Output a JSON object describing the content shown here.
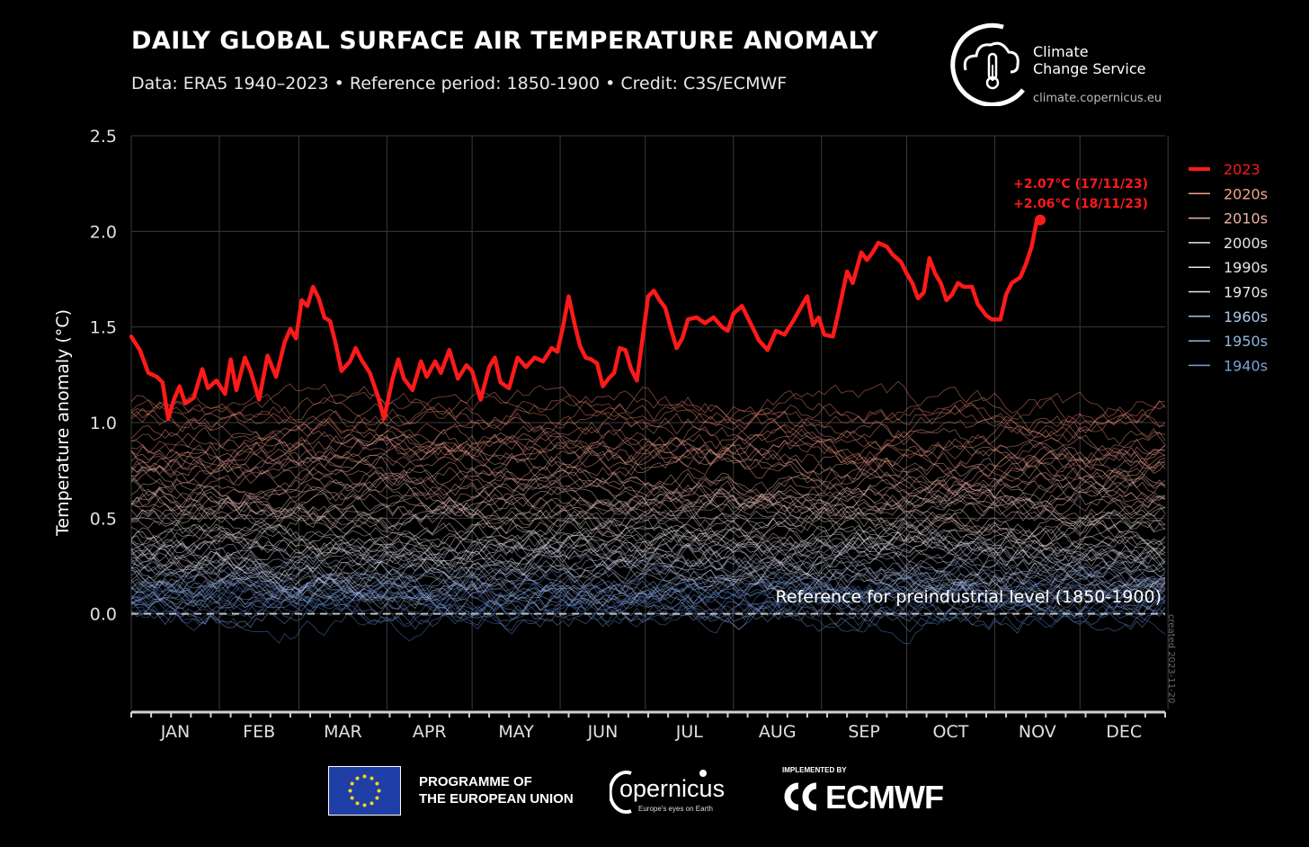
{
  "header": {
    "title": "DAILY GLOBAL SURFACE AIR TEMPERATURE ANOMALY",
    "subtitle": "Data: ERA5 1940–2023 • Reference period: 1850-1900 • Credit: C3S/ECMWF"
  },
  "branding": {
    "service_name_line1": "Climate",
    "service_name_line2": "Change Service",
    "service_url": "climate.copernicus.eu",
    "eu_program_line1": "PROGRAMME OF",
    "eu_program_line2": "THE EUROPEAN UNION",
    "copernicus_name": "opernicus",
    "copernicus_tagline": "Europe's eyes on Earth",
    "implemented_by": "IMPLEMENTED BY",
    "ecmwf_name": "ECMWF"
  },
  "chart_data": {
    "type": "line",
    "title": "DAILY GLOBAL SURFACE AIR TEMPERATURE ANOMALY",
    "ylabel": "Temperature anomaly (°C)",
    "xlabel": "",
    "ylim": [
      -0.5,
      2.5
    ],
    "yticks": [
      0.0,
      0.5,
      1.0,
      1.5,
      2.0,
      2.5
    ],
    "ytick_labels": [
      "0.0",
      "0.5",
      "1.0",
      "1.5",
      "2.0",
      "2.5"
    ],
    "x_categories": [
      "JAN",
      "FEB",
      "MAR",
      "APR",
      "MAY",
      "JUN",
      "JUL",
      "AUG",
      "SEP",
      "OCT",
      "NOV",
      "DEC"
    ],
    "x_unit": "day of year",
    "xlim": [
      1,
      365
    ],
    "grid": true,
    "legend_position": "right",
    "legend": [
      {
        "label": "2023",
        "color": "#ff1a1a",
        "bold": true
      },
      {
        "label": "2020s",
        "color": "#f0a48a"
      },
      {
        "label": "2010s",
        "color": "#e8b4a0"
      },
      {
        "label": "2000s",
        "color": "#e6e6e6"
      },
      {
        "label": "1990s",
        "color": "#e6e6e6"
      },
      {
        "label": "1970s",
        "color": "#e6e6e6"
      },
      {
        "label": "1960s",
        "color": "#a9c6e8"
      },
      {
        "label": "1950s",
        "color": "#8fb3df"
      },
      {
        "label": "1940s",
        "color": "#7aa0d4"
      }
    ],
    "series": [
      {
        "name": "2023",
        "color": "#ff1a1a",
        "points": [
          [
            1,
            1.45
          ],
          [
            4,
            1.38
          ],
          [
            7,
            1.26
          ],
          [
            10,
            1.24
          ],
          [
            12,
            1.21
          ],
          [
            14,
            1.02
          ],
          [
            16,
            1.12
          ],
          [
            18,
            1.19
          ],
          [
            20,
            1.1
          ],
          [
            23,
            1.13
          ],
          [
            26,
            1.28
          ],
          [
            28,
            1.18
          ],
          [
            31,
            1.22
          ],
          [
            34,
            1.15
          ],
          [
            36,
            1.33
          ],
          [
            38,
            1.17
          ],
          [
            41,
            1.34
          ],
          [
            43,
            1.27
          ],
          [
            46,
            1.12
          ],
          [
            49,
            1.35
          ],
          [
            52,
            1.24
          ],
          [
            55,
            1.42
          ],
          [
            57,
            1.49
          ],
          [
            59,
            1.44
          ],
          [
            61,
            1.64
          ],
          [
            63,
            1.61
          ],
          [
            65,
            1.71
          ],
          [
            67,
            1.65
          ],
          [
            69,
            1.55
          ],
          [
            71,
            1.53
          ],
          [
            73,
            1.41
          ],
          [
            75,
            1.27
          ],
          [
            78,
            1.32
          ],
          [
            80,
            1.39
          ],
          [
            82,
            1.33
          ],
          [
            85,
            1.26
          ],
          [
            88,
            1.13
          ],
          [
            90,
            1.02
          ],
          [
            93,
            1.23
          ],
          [
            95,
            1.33
          ],
          [
            97,
            1.23
          ],
          [
            100,
            1.17
          ],
          [
            103,
            1.32
          ],
          [
            105,
            1.24
          ],
          [
            108,
            1.32
          ],
          [
            110,
            1.26
          ],
          [
            113,
            1.38
          ],
          [
            116,
            1.23
          ],
          [
            119,
            1.3
          ],
          [
            121,
            1.27
          ],
          [
            124,
            1.12
          ],
          [
            127,
            1.29
          ],
          [
            129,
            1.34
          ],
          [
            131,
            1.21
          ],
          [
            134,
            1.18
          ],
          [
            137,
            1.34
          ],
          [
            140,
            1.29
          ],
          [
            143,
            1.34
          ],
          [
            146,
            1.32
          ],
          [
            149,
            1.39
          ],
          [
            151,
            1.37
          ],
          [
            153,
            1.5
          ],
          [
            155,
            1.66
          ],
          [
            157,
            1.52
          ],
          [
            159,
            1.4
          ],
          [
            161,
            1.34
          ],
          [
            163,
            1.33
          ],
          [
            165,
            1.31
          ],
          [
            167,
            1.19
          ],
          [
            169,
            1.23
          ],
          [
            171,
            1.26
          ],
          [
            173,
            1.39
          ],
          [
            175,
            1.38
          ],
          [
            177,
            1.28
          ],
          [
            179,
            1.22
          ],
          [
            181,
            1.44
          ],
          [
            183,
            1.66
          ],
          [
            185,
            1.69
          ],
          [
            187,
            1.64
          ],
          [
            189,
            1.6
          ],
          [
            191,
            1.49
          ],
          [
            193,
            1.39
          ],
          [
            195,
            1.44
          ],
          [
            197,
            1.54
          ],
          [
            200,
            1.55
          ],
          [
            203,
            1.52
          ],
          [
            206,
            1.55
          ],
          [
            209,
            1.5
          ],
          [
            211,
            1.48
          ],
          [
            213,
            1.57
          ],
          [
            216,
            1.61
          ],
          [
            219,
            1.52
          ],
          [
            222,
            1.43
          ],
          [
            225,
            1.38
          ],
          [
            228,
            1.48
          ],
          [
            231,
            1.46
          ],
          [
            234,
            1.53
          ],
          [
            237,
            1.61
          ],
          [
            239,
            1.66
          ],
          [
            241,
            1.51
          ],
          [
            243,
            1.55
          ],
          [
            245,
            1.46
          ],
          [
            248,
            1.45
          ],
          [
            250,
            1.58
          ],
          [
            253,
            1.79
          ],
          [
            255,
            1.73
          ],
          [
            258,
            1.89
          ],
          [
            260,
            1.85
          ],
          [
            262,
            1.89
          ],
          [
            264,
            1.94
          ],
          [
            267,
            1.92
          ],
          [
            269,
            1.88
          ],
          [
            272,
            1.84
          ],
          [
            274,
            1.78
          ],
          [
            276,
            1.73
          ],
          [
            278,
            1.65
          ],
          [
            280,
            1.68
          ],
          [
            282,
            1.86
          ],
          [
            284,
            1.78
          ],
          [
            286,
            1.73
          ],
          [
            288,
            1.64
          ],
          [
            290,
            1.67
          ],
          [
            292,
            1.73
          ],
          [
            294,
            1.71
          ],
          [
            297,
            1.71
          ],
          [
            299,
            1.62
          ],
          [
            302,
            1.56
          ],
          [
            304,
            1.54
          ],
          [
            307,
            1.54
          ],
          [
            309,
            1.67
          ],
          [
            311,
            1.73
          ],
          [
            314,
            1.76
          ],
          [
            316,
            1.83
          ],
          [
            318,
            1.92
          ],
          [
            320,
            2.07
          ],
          [
            321,
            2.06
          ]
        ]
      }
    ],
    "annotations": [
      {
        "text": "+2.07°C (17/11/23)",
        "color": "#ff1a1a"
      },
      {
        "text": "+2.06°C (18/11/23)",
        "color": "#ff1a1a"
      },
      {
        "text": "Reference for preindustrial level (1850-1900)",
        "color": "#ffffff"
      }
    ],
    "reference_line": {
      "y": 0.0,
      "style": "dashed",
      "color": "#bdbdbd"
    },
    "background_years": {
      "from": 1940,
      "to": 2022,
      "description": "daily series per year, colored by decade"
    },
    "created_note": "created 2023-11-20"
  }
}
